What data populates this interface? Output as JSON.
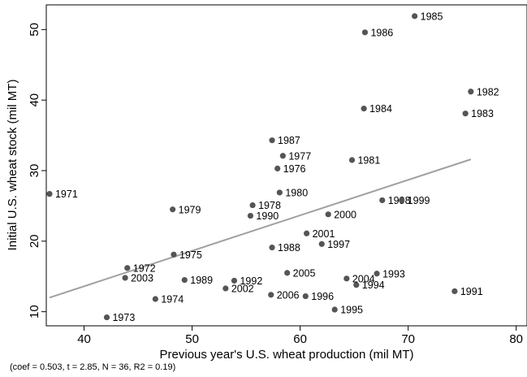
{
  "chart_data": {
    "type": "scatter",
    "xlabel": "Previous year's U.S. wheat production (mil MT)",
    "ylabel": "Initial U.S. wheat stock (mil MT)",
    "xlim": [
      36.5,
      81
    ],
    "ylim": [
      8,
      53.5
    ],
    "xticks": [
      40,
      50,
      60,
      70,
      80
    ],
    "yticks": [
      10,
      20,
      30,
      40,
      50
    ],
    "grid": false,
    "marker_color": "#555555",
    "fit_line_color": "#a0a0a0",
    "points": [
      {
        "label": "1971",
        "x": 36.8,
        "y": 26.7
      },
      {
        "label": "1972",
        "x": 44.0,
        "y": 16.2
      },
      {
        "label": "1973",
        "x": 42.1,
        "y": 9.2
      },
      {
        "label": "1974",
        "x": 46.6,
        "y": 11.8
      },
      {
        "label": "1975",
        "x": 48.3,
        "y": 18.1
      },
      {
        "label": "1976",
        "x": 57.9,
        "y": 30.3
      },
      {
        "label": "1977",
        "x": 58.4,
        "y": 32.1
      },
      {
        "label": "1978",
        "x": 55.6,
        "y": 25.1
      },
      {
        "label": "1979",
        "x": 48.2,
        "y": 24.5
      },
      {
        "label": "1980",
        "x": 58.1,
        "y": 26.9
      },
      {
        "label": "1981",
        "x": 64.8,
        "y": 31.5
      },
      {
        "label": "1982",
        "x": 75.8,
        "y": 41.2
      },
      {
        "label": "1983",
        "x": 75.3,
        "y": 38.1
      },
      {
        "label": "1984",
        "x": 65.9,
        "y": 38.8
      },
      {
        "label": "1985",
        "x": 70.6,
        "y": 51.9
      },
      {
        "label": "1986",
        "x": 66.0,
        "y": 49.6
      },
      {
        "label": "1987",
        "x": 57.4,
        "y": 34.3
      },
      {
        "label": "1988",
        "x": 57.4,
        "y": 19.1
      },
      {
        "label": "1989",
        "x": 49.3,
        "y": 14.5
      },
      {
        "label": "1990",
        "x": 55.4,
        "y": 23.6
      },
      {
        "label": "1991",
        "x": 74.3,
        "y": 12.9
      },
      {
        "label": "1992",
        "x": 53.9,
        "y": 14.4
      },
      {
        "label": "1993",
        "x": 67.1,
        "y": 15.4
      },
      {
        "label": "1994",
        "x": 65.2,
        "y": 13.8
      },
      {
        "label": "1995",
        "x": 63.2,
        "y": 10.3
      },
      {
        "label": "1996",
        "x": 60.5,
        "y": 12.2
      },
      {
        "label": "1997",
        "x": 62.0,
        "y": 19.6
      },
      {
        "label": "1998",
        "x": 67.6,
        "y": 25.8
      },
      {
        "label": "1999",
        "x": 69.4,
        "y": 25.8
      },
      {
        "label": "2000",
        "x": 62.6,
        "y": 23.8
      },
      {
        "label": "2001",
        "x": 60.6,
        "y": 21.1
      },
      {
        "label": "2002",
        "x": 53.1,
        "y": 13.3
      },
      {
        "label": "2003",
        "x": 43.8,
        "y": 14.8
      },
      {
        "label": "2004",
        "x": 64.3,
        "y": 14.7
      },
      {
        "label": "2005",
        "x": 58.8,
        "y": 15.5
      },
      {
        "label": "2006",
        "x": 57.3,
        "y": 12.4
      }
    ],
    "fit_line": {
      "x": [
        36.8,
        75.8
      ],
      "y": [
        12.0,
        31.6
      ]
    }
  },
  "footnote": "(coef = 0.503, t = 2.85, N = 36, R2 = 0.19)"
}
